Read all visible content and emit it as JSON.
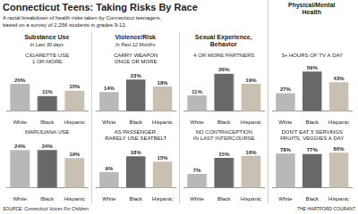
{
  "title": "Connecticut Teens: Taking Risks By Race",
  "subtitle": "A racial breakdown of health risks taken by Connecticut teenagers,\nbased on a survey of 2,256 students in grades 9-12.",
  "annotations": [
    "SOURCE: Connecticut Voices For Children",
    "THE HARTFORD COURANT"
  ],
  "chart_data": [
    {
      "type": "bar",
      "title": "CIGARETTE USE\n1 OR MORE",
      "annotations": [
        "Substance Use",
        "In Last 30 days"
      ],
      "categories": [
        "White",
        "Black",
        "Hispanic"
      ],
      "values": [
        20,
        11,
        15
      ],
      "value_labels": [
        "20%",
        "11%",
        "15%"
      ],
      "colors": [
        "#b8b8b8",
        "#686868",
        "#c8c0b0"
      ],
      "ylim": [
        0,
        32
      ],
      "grid": false,
      "tick_labels": "x",
      "data_labels": true
    },
    {
      "type": "bar",
      "title": "MARIJUANA USE",
      "categories": [
        "White",
        "Black",
        "Hispanic"
      ],
      "values": [
        24,
        24,
        19
      ],
      "value_labels": [
        "24%",
        "24%",
        "19%"
      ],
      "colors": [
        "#b8b8b8",
        "#686868",
        "#c8c0b0"
      ],
      "ylim": [
        0,
        32
      ],
      "grid": false,
      "tick_labels": "x",
      "data_labels": true
    },
    {
      "type": "bar",
      "title": "CARRY WEAPON\nONCE OR MORE",
      "annotations": [
        "Violence/Risk",
        "In Past 12 Months"
      ],
      "categories": [
        "White",
        "Black",
        "Hispanic"
      ],
      "values": [
        14,
        23,
        18
      ],
      "value_labels": [
        "14%",
        "23%",
        "18%"
      ],
      "colors": [
        "#b8b8b8",
        "#686868",
        "#c8c0b0"
      ],
      "ylim": [
        0,
        32
      ],
      "grid": false,
      "tick_labels": "x",
      "data_labels": true
    },
    {
      "type": "bar",
      "title": "AS PASSENGER,\nRARELY USE SEATBELT",
      "categories": [
        "White",
        "Black",
        "Hispanic"
      ],
      "values": [
        9,
        18,
        15
      ],
      "value_labels": [
        "9%",
        "18%",
        "15%"
      ],
      "colors": [
        "#b8b8b8",
        "#686868",
        "#c8c0b0"
      ],
      "ylim": [
        0,
        25
      ],
      "grid": false,
      "tick_labels": "x",
      "data_labels": true
    },
    {
      "type": "bar",
      "title": "4 OR MORE PARTNERS",
      "annotations": [
        "Sexual Experience,\nBehavior"
      ],
      "categories": [
        "White",
        "Black",
        "Hispanic"
      ],
      "values": [
        11,
        26,
        19
      ],
      "value_labels": [
        "11%",
        "26%",
        "19%"
      ],
      "colors": [
        "#b8b8b8",
        "#686868",
        "#c8c0b0"
      ],
      "ylim": [
        0,
        35
      ],
      "grid": false,
      "tick_labels": "x",
      "data_labels": true
    },
    {
      "type": "bar",
      "title": "NO CONTRACEPTION\nIN LAST INTERCOURSE",
      "categories": [
        "White",
        "Black",
        "Hispanic"
      ],
      "values": [
        7,
        15,
        16
      ],
      "value_labels": [
        "7%",
        "15%",
        "16%"
      ],
      "colors": [
        "#b8b8b8",
        "#686868",
        "#c8c0b0"
      ],
      "ylim": [
        0,
        22
      ],
      "grid": false,
      "tick_labels": "x",
      "data_labels": true
    },
    {
      "type": "bar",
      "title": "3+ HOURS OF TV A DAY",
      "annotations": [
        "Physical/Mental\nHealth"
      ],
      "categories": [
        "White",
        "Black",
        "Hispanic"
      ],
      "values": [
        27,
        59,
        43
      ],
      "value_labels": [
        "27%",
        "59%",
        "43%"
      ],
      "colors": [
        "#b8b8b8",
        "#686868",
        "#c8c0b0"
      ],
      "ylim": [
        0,
        75
      ],
      "grid": false,
      "tick_labels": "x",
      "data_labels": true
    },
    {
      "type": "bar",
      "title": "DON'T EAT 5 SERVINGS\nFRUITS, VEGGIES A DAY",
      "categories": [
        "White",
        "Black",
        "Hispanic"
      ],
      "values": [
        78,
        77,
        80
      ],
      "value_labels": [
        "78%",
        "77%",
        "80%"
      ],
      "colors": [
        "#b8b8b8",
        "#686868",
        "#c8c0b0"
      ],
      "ylim": [
        0,
        100
      ],
      "grid": false,
      "tick_labels": "x",
      "data_labels": true
    }
  ]
}
